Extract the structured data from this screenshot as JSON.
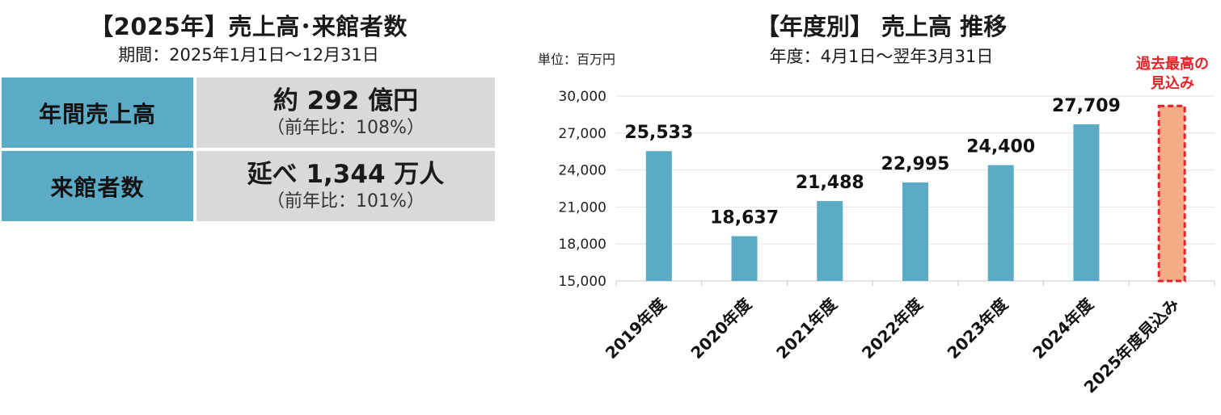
{
  "left": {
    "title": "【2025年】売上高･来館者数",
    "period": "期間：2025年1月1日～12月31日",
    "rows": [
      {
        "label": "年間売上高",
        "value": "約 292 億円",
        "sub": "（前年比：108%）"
      },
      {
        "label": "来館者数",
        "value": "延べ  1,344 万人",
        "sub": "（前年比：101%）"
      }
    ]
  },
  "chart_data": {
    "type": "bar",
    "title": "【年度別】 売上高 推移",
    "subtitle": "年度：4月1日～翌年3月31日",
    "unit": "単位：百万円",
    "categories": [
      "2019年度",
      "2020年度",
      "2021年度",
      "2022年度",
      "2023年度",
      "2024年度",
      "2025年度見込み"
    ],
    "values": [
      25533,
      18637,
      21488,
      22995,
      24400,
      27709,
      29200
    ],
    "value_labels": [
      "25,533",
      "18,637",
      "21,488",
      "22,995",
      "24,400",
      "27,709",
      ""
    ],
    "yticks": [
      "15,000",
      "18,000",
      "21,000",
      "24,000",
      "27,000",
      "30,000"
    ],
    "ylim": [
      15000,
      30000
    ],
    "grid": true,
    "bar_color": "#5babc6",
    "forecast_color": "#f4ac88",
    "forecast_border_color": "#e0242a",
    "annotation": [
      "過去最高の",
      "見込み"
    ]
  }
}
